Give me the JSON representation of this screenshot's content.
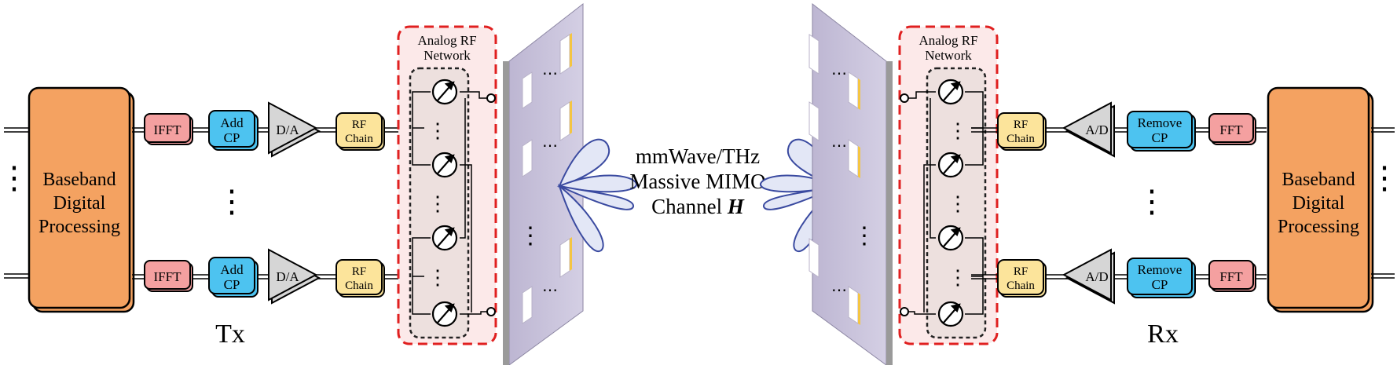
{
  "tx": {
    "label": "Tx",
    "baseband": [
      "Baseband",
      "Digital",
      "Processing"
    ],
    "ifft": "IFFT",
    "add_cp": [
      "Add",
      "CP"
    ],
    "dac": "D/A",
    "rf_chain": [
      "RF",
      "Chain"
    ],
    "network_label": [
      "Analog RF",
      "Network"
    ]
  },
  "rx": {
    "label": "Rx",
    "baseband": [
      "Baseband",
      "Digital",
      "Processing"
    ],
    "fft": "FFT",
    "remove_cp": [
      "Remove",
      "CP"
    ],
    "adc": "A/D",
    "rf_chain": [
      "RF",
      "Chain"
    ],
    "network_label": [
      "Analog RF",
      "Network"
    ]
  },
  "channel": {
    "line1": "mmWave/THz",
    "line2": "Massive MIMO",
    "line3_prefix": "Channel ",
    "line3_symbol": "H"
  },
  "colors": {
    "baseband": "#F4A261",
    "fft": "#F4A0A0",
    "cp": "#4DC3F0",
    "converter": "#D6D6D6",
    "rf_chain": "#FCE49B",
    "network_border": "#E02020",
    "network_fill": "#FCE9E9",
    "panel": "#C9C3DC",
    "beam": "#E3E7F6"
  }
}
